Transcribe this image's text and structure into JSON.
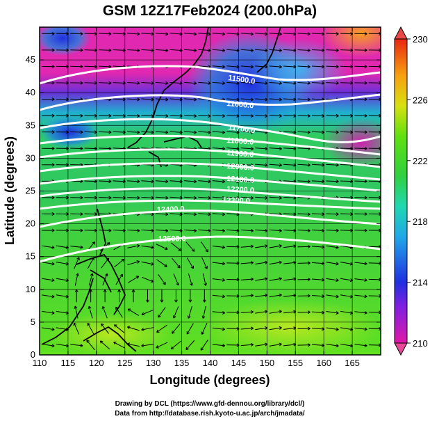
{
  "title": "GSM 12Z17Feb2024 (200.0hPa)",
  "xaxis": {
    "label": "Longitude (degrees)",
    "ticks": [
      "110",
      "115",
      "120",
      "125",
      "130",
      "135",
      "140",
      "145",
      "150",
      "155",
      "160",
      "165"
    ],
    "range": [
      110,
      170
    ]
  },
  "yaxis": {
    "label": "Latitude  (degrees)",
    "ticks": [
      "0",
      "5",
      "10",
      "15",
      "20",
      "25",
      "30",
      "35",
      "40",
      "45"
    ],
    "range": [
      0,
      50
    ]
  },
  "colorbar": {
    "ticks": [
      "210",
      "214",
      "218",
      "222",
      "226",
      "230"
    ],
    "range": [
      210,
      230
    ]
  },
  "contours": {
    "labels": [
      "11500.0",
      "11600.0",
      "11700.0",
      "11800.0",
      "11900.0",
      "12000.0",
      "12100.0",
      "12200.0",
      "12300.0",
      "12400.0",
      "12500.0"
    ],
    "values": [
      11500,
      11600,
      11700,
      11800,
      11900,
      12000,
      12100,
      12200,
      12300,
      12400,
      12500
    ]
  },
  "footer": {
    "line1": "Drawing by DCL (https://www.gfd-dennou.org/library/dcl/)",
    "line2": "Data from http://database.rish.kyoto-u.ac.jp/arch/jmadata/"
  },
  "colors": {
    "low": "#e0189c",
    "mid": "#30d030",
    "high": "#e02810",
    "contour": "#ffffff",
    "frame": "#000000"
  },
  "chart_data": {
    "type": "heatmap",
    "title": "GSM 12Z17Feb2024 (200.0hPa)",
    "xlabel": "Longitude (degrees)",
    "ylabel": "Latitude  (degrees)",
    "xlim": [
      110,
      170
    ],
    "ylim": [
      0,
      50
    ],
    "colorbar_range": [
      210,
      230
    ],
    "contour_levels": [
      11500,
      11600,
      11700,
      11800,
      11900,
      12000,
      12100,
      12200,
      12300,
      12400,
      12500
    ],
    "grid": true
  }
}
